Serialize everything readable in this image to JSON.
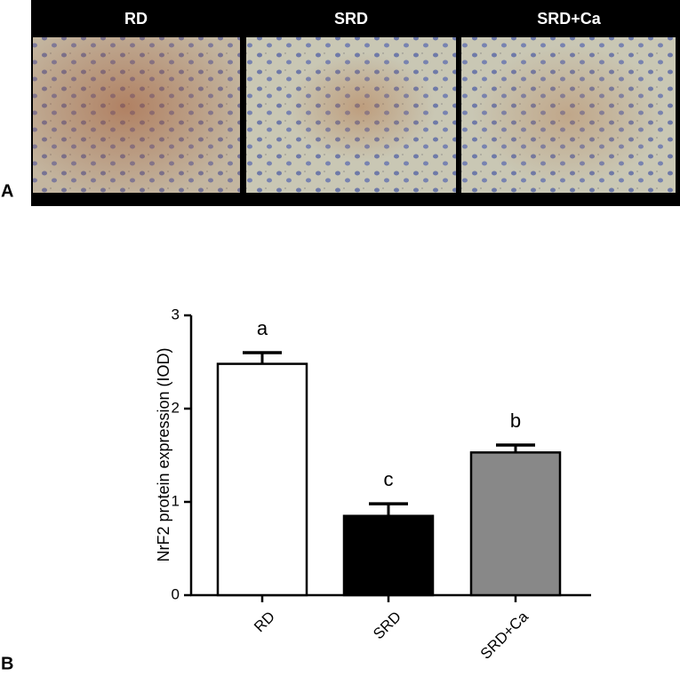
{
  "panel_a": {
    "label": "A",
    "titles": [
      "RD",
      "SRD",
      "SRD+Ca"
    ]
  },
  "panel_b_label": "B",
  "chart_data": {
    "type": "bar",
    "y_label": "NrF2 protein expression (IOD)",
    "categories": [
      "RD",
      "SRD",
      "SRD+Ca"
    ],
    "values": [
      2.48,
      0.85,
      1.53
    ],
    "errors": [
      0.12,
      0.13,
      0.08
    ],
    "annotations": [
      "a",
      "c",
      "b"
    ],
    "colors": [
      "#ffffff",
      "#000000",
      "#888888"
    ],
    "ylim": [
      0,
      3
    ],
    "yticks": [
      0,
      1,
      2,
      3
    ]
  }
}
